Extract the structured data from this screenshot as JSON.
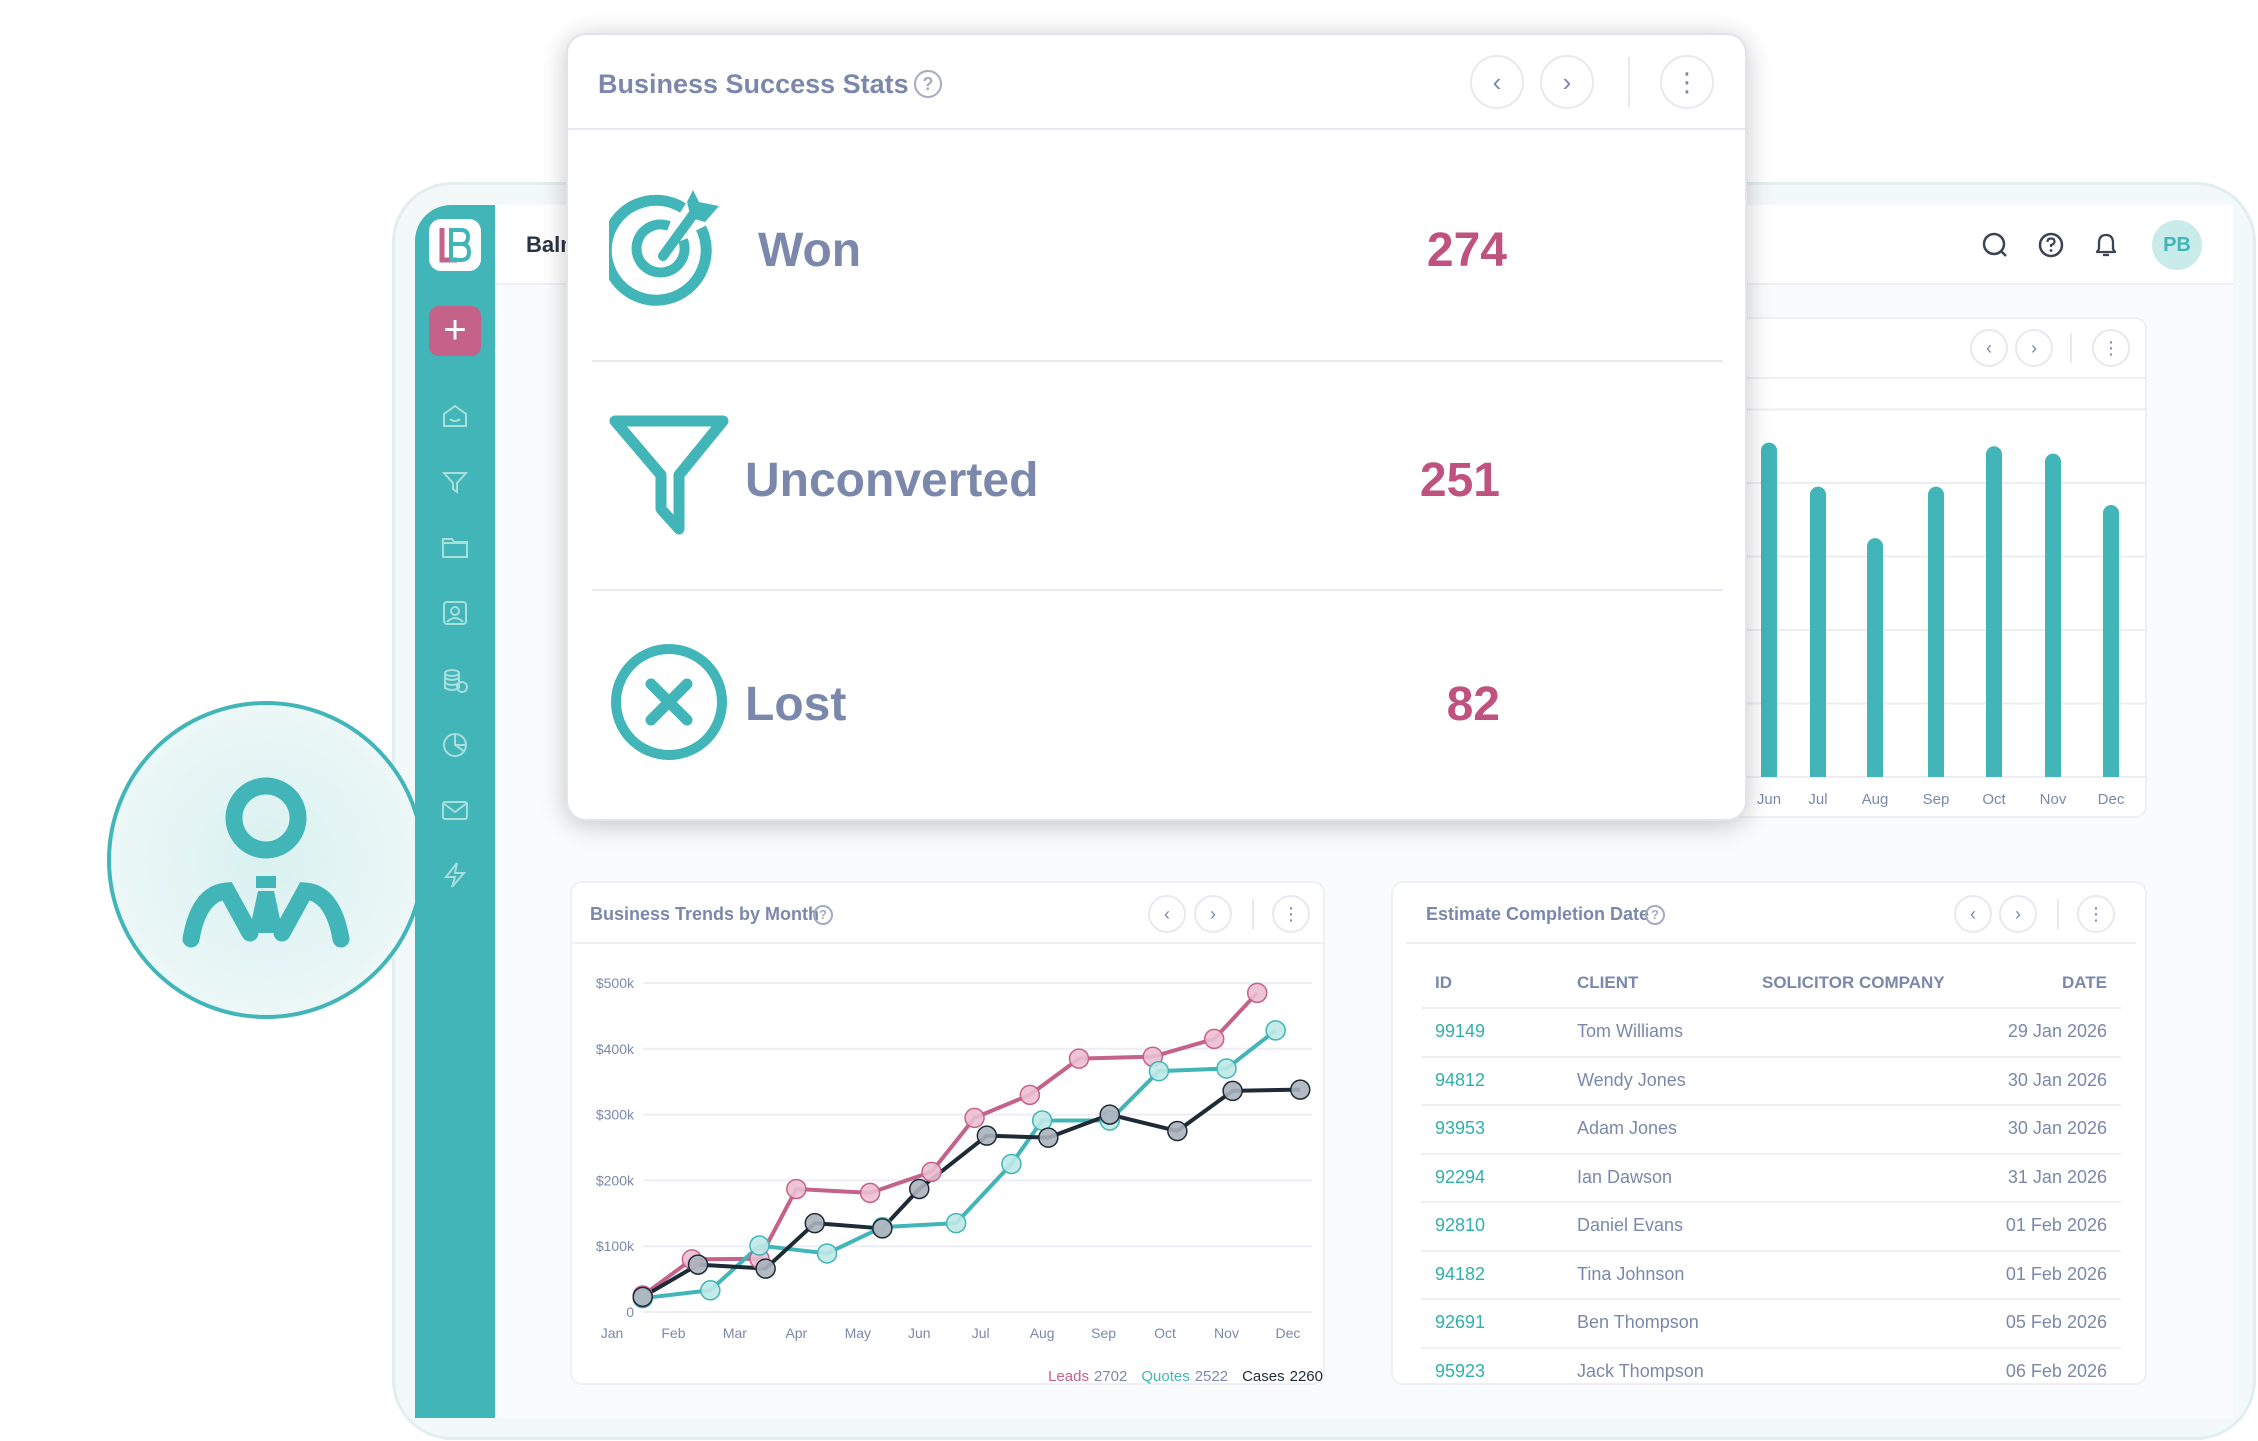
{
  "app": {
    "brand_partial": "Baln",
    "logo_letters": "LB",
    "new_button": "+",
    "avatar_initials": "PB"
  },
  "sidebar": {
    "items": [
      "home-icon",
      "funnel-icon",
      "folder-icon",
      "contact-icon",
      "coins-icon",
      "pie-chart-icon",
      "mail-icon",
      "lightning-icon"
    ]
  },
  "header": {
    "icons": [
      "search-icon",
      "help-icon",
      "bell-icon"
    ]
  },
  "popup": {
    "title": "Business Success Stats",
    "help": "?",
    "stats": [
      {
        "label": "Won",
        "value": "274",
        "icon": "target-icon"
      },
      {
        "label": "Unconverted",
        "value": "251",
        "icon": "funnel-icon"
      },
      {
        "label": "Lost",
        "value": "82",
        "icon": "x-circle-icon"
      }
    ]
  },
  "trends": {
    "title": "Business Trends by Month",
    "help": "?"
  },
  "estimates": {
    "title": "Estimate Completion Date",
    "help": "?",
    "columns": [
      "ID",
      "CLIENT",
      "SOLICITOR COMPANY",
      "DATE"
    ],
    "rows": [
      {
        "id": "99149",
        "client": "Tom Williams",
        "company": "",
        "date": "29 Jan 2026"
      },
      {
        "id": "94812",
        "client": "Wendy Jones",
        "company": "",
        "date": "30 Jan 2026"
      },
      {
        "id": "93953",
        "client": "Adam Jones",
        "company": "",
        "date": "30 Jan 2026"
      },
      {
        "id": "92294",
        "client": "Ian Dawson",
        "company": "",
        "date": "31 Jan 2026"
      },
      {
        "id": "92810",
        "client": "Daniel Evans",
        "company": "",
        "date": "01 Feb 2026"
      },
      {
        "id": "94182",
        "client": "Tina Johnson",
        "company": "",
        "date": "01 Feb 2026"
      },
      {
        "id": "92691",
        "client": "Ben Thompson",
        "company": "",
        "date": "05 Feb 2026"
      },
      {
        "id": "95923",
        "client": "Jack Thompson",
        "company": "",
        "date": "06 Feb 2026"
      }
    ]
  },
  "colors": {
    "teal": "#41b5b7",
    "pink": "#c4628a",
    "dark": "#1f2a37",
    "text": "#7b88ab",
    "value": "#c0527f"
  },
  "chart_data": [
    {
      "type": "bar",
      "categories": [
        "Jun",
        "Jul",
        "Aug",
        "Sep",
        "Oct",
        "Nov",
        "Dec"
      ],
      "values": [
        4.55,
        3.95,
        3.25,
        3.95,
        4.5,
        4.4,
        3.7
      ],
      "ylim": [
        0,
        5
      ],
      "grid": true,
      "color": "#41b5b7"
    },
    {
      "type": "line",
      "title": "Business Trends by Month",
      "x_ticks": [
        "Jan",
        "Feb",
        "Mar",
        "Apr",
        "May",
        "Jun",
        "Jul",
        "Aug",
        "Sep",
        "Oct",
        "Nov",
        "Dec"
      ],
      "y_ticks": [
        "0",
        "$100k",
        "$200k",
        "$300k",
        "$400k",
        "$500k"
      ],
      "ylim": [
        0,
        500000
      ],
      "grid": true,
      "legend_placement": "bottom-right",
      "series": [
        {
          "name": "Leads",
          "total": "2702",
          "color": "#c4628a",
          "x": [
            1.5,
            2.3,
            3.4,
            4.0,
            5.2,
            6.2,
            6.9,
            7.8,
            8.6,
            9.8,
            10.8,
            11.5
          ],
          "values": [
            25000,
            80000,
            81000,
            187000,
            181000,
            213000,
            295000,
            330000,
            385000,
            388000,
            415000,
            485000
          ]
        },
        {
          "name": "Quotes",
          "total": "2522",
          "color": "#41b5b7",
          "x": [
            1.5,
            2.6,
            3.4,
            4.5,
            5.4,
            6.6,
            7.5,
            8.0,
            9.1,
            9.9,
            11.0,
            11.8
          ],
          "values": [
            21000,
            33000,
            101000,
            89000,
            129000,
            135000,
            225000,
            291000,
            291000,
            366000,
            370000,
            428000
          ]
        },
        {
          "name": "Cases",
          "total": "2260",
          "color": "#1f2a37",
          "x": [
            1.5,
            2.4,
            3.5,
            4.3,
            5.4,
            6.0,
            7.1,
            8.1,
            9.1,
            10.2,
            11.1,
            12.2
          ],
          "values": [
            23000,
            72000,
            66000,
            135000,
            127000,
            187000,
            268000,
            265000,
            300000,
            275000,
            336000,
            338000
          ]
        }
      ]
    }
  ]
}
